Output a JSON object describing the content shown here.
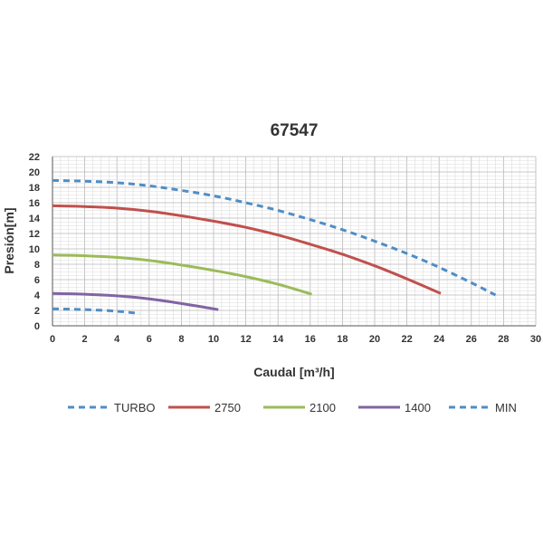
{
  "chart_data": {
    "type": "line",
    "title": "67547",
    "xlabel": "Caudal [m³/h]",
    "ylabel": "Presión[m]",
    "xlim": [
      0,
      30
    ],
    "ylim": [
      0,
      22
    ],
    "x_ticks": [
      0,
      2,
      4,
      6,
      8,
      10,
      12,
      14,
      16,
      18,
      20,
      22,
      24,
      26,
      28,
      30
    ],
    "y_ticks": [
      0,
      2,
      4,
      6,
      8,
      10,
      12,
      14,
      16,
      18,
      20,
      22
    ],
    "grid": true,
    "legend_position": "bottom",
    "series": [
      {
        "name": "TURBO",
        "color": "#4f8dc6",
        "dash": true,
        "x": [
          0,
          2,
          4,
          6,
          8,
          10,
          12,
          14,
          16,
          18,
          20,
          22,
          24,
          26,
          27.5
        ],
        "y": [
          18.9,
          18.8,
          18.6,
          18.2,
          17.6,
          16.9,
          16.0,
          15.0,
          13.8,
          12.5,
          11.0,
          9.4,
          7.6,
          5.6,
          4.0
        ]
      },
      {
        "name": "2750",
        "color": "#c0504d",
        "dash": false,
        "x": [
          0,
          2,
          4,
          6,
          8,
          10,
          12,
          14,
          16,
          18,
          20,
          22,
          24.1
        ],
        "y": [
          15.6,
          15.5,
          15.3,
          14.9,
          14.3,
          13.6,
          12.8,
          11.8,
          10.6,
          9.3,
          7.8,
          6.1,
          4.2
        ]
      },
      {
        "name": "2100",
        "color": "#9bbb59",
        "dash": false,
        "x": [
          0,
          2,
          4,
          6,
          8,
          10,
          12,
          14,
          16.1
        ],
        "y": [
          9.2,
          9.1,
          8.9,
          8.5,
          7.9,
          7.2,
          6.4,
          5.4,
          4.1
        ]
      },
      {
        "name": "1400",
        "color": "#8064a2",
        "dash": false,
        "x": [
          0,
          2,
          4,
          6,
          8,
          10.3
        ],
        "y": [
          4.2,
          4.1,
          3.9,
          3.5,
          2.9,
          2.1
        ]
      },
      {
        "name": "MIN",
        "color": "#4f8dc6",
        "dash": true,
        "x": [
          0,
          2,
          4,
          5.4
        ],
        "y": [
          2.2,
          2.1,
          1.9,
          1.6
        ]
      }
    ]
  }
}
